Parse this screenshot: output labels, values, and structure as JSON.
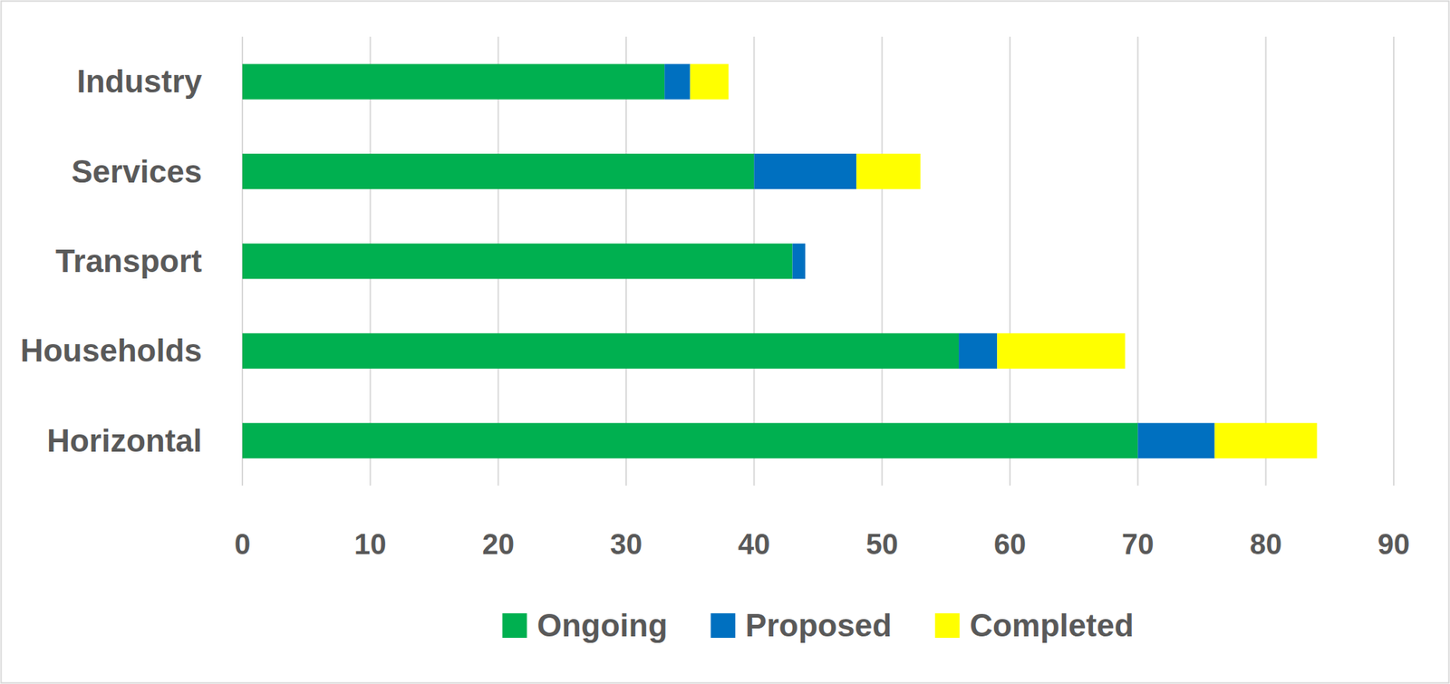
{
  "chart_data": {
    "type": "bar",
    "orientation": "horizontal",
    "stacked": true,
    "grid": true,
    "legend": "bottom",
    "categories": [
      "Industry",
      "Services",
      "Transport",
      "Households",
      "Horizontal"
    ],
    "series": [
      {
        "name": "Ongoing",
        "color": "#00b050",
        "values": [
          33,
          40,
          43,
          56,
          70
        ]
      },
      {
        "name": "Proposed",
        "color": "#0070c0",
        "values": [
          2,
          8,
          1,
          3,
          6
        ]
      },
      {
        "name": "Completed",
        "color": "#ffff00",
        "values": [
          3,
          5,
          0,
          10,
          8
        ]
      }
    ],
    "xlim": [
      0,
      90
    ],
    "xticks": [
      0,
      10,
      20,
      30,
      40,
      50,
      60,
      70,
      80,
      90
    ]
  }
}
